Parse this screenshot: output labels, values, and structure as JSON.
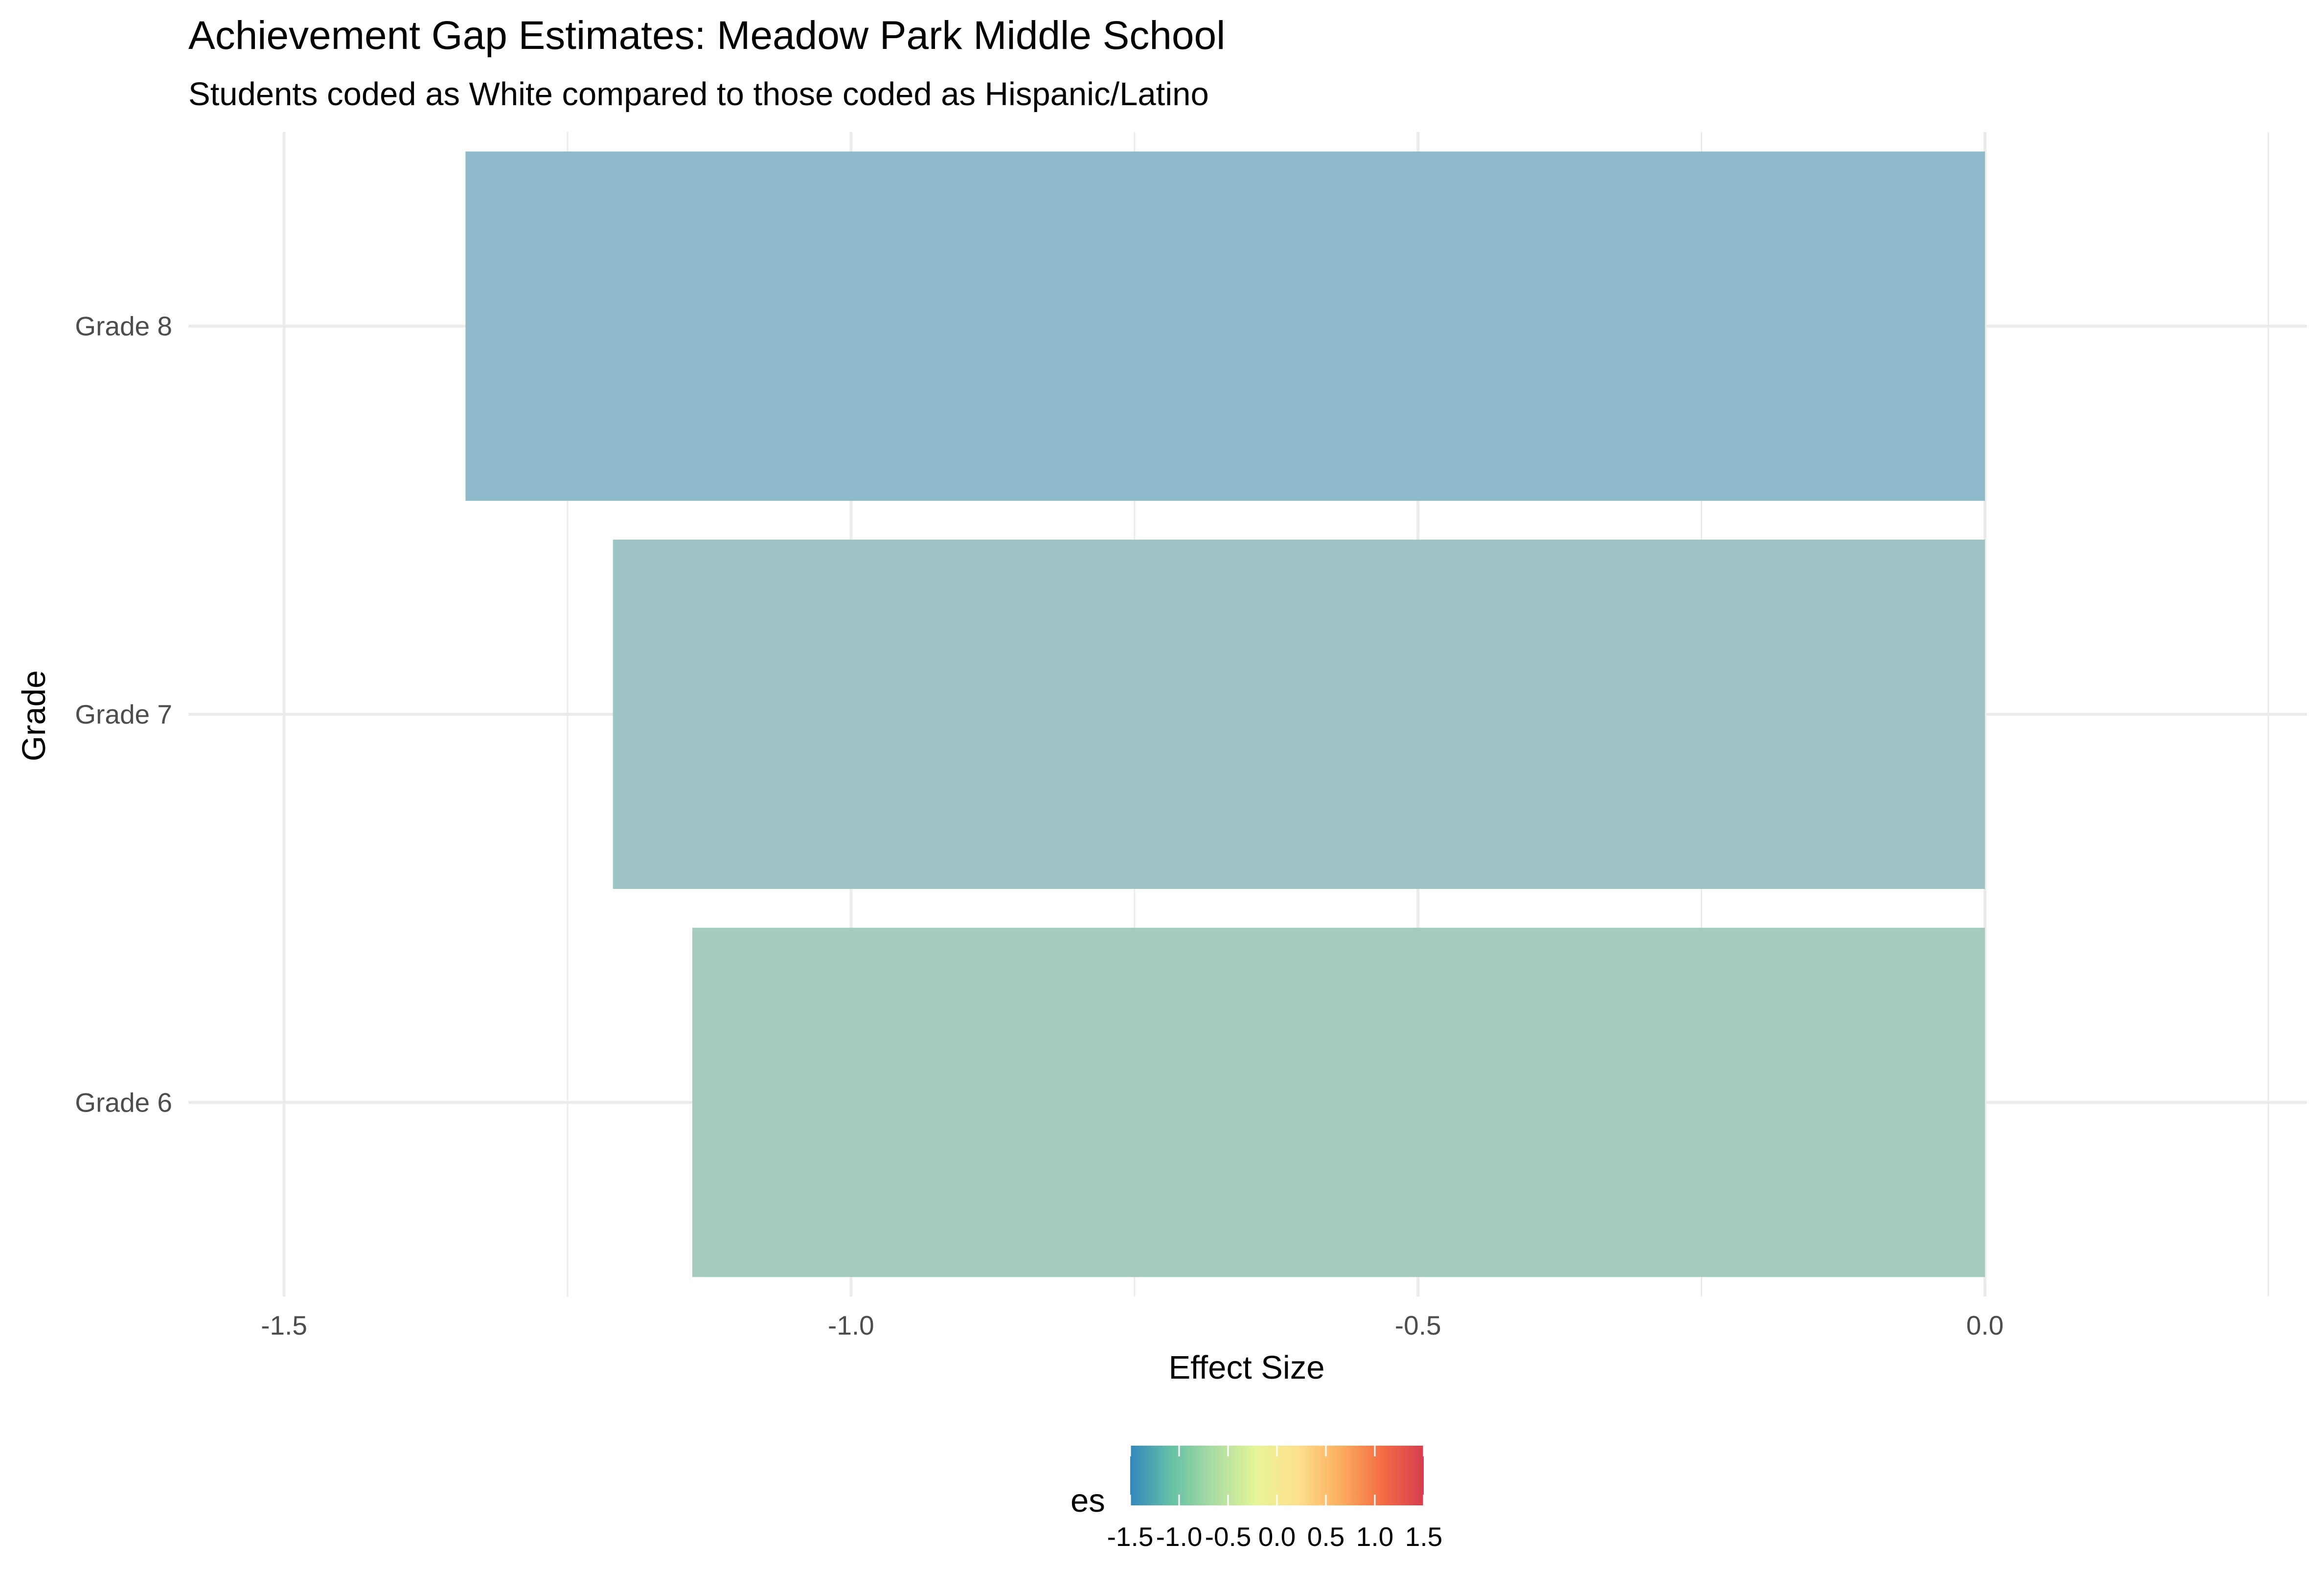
{
  "chart_data": {
    "type": "bar",
    "orientation": "horizontal",
    "title": "Achievement Gap Estimates: Meadow Park Middle School",
    "subtitle": "Students coded as White compared to those coded as Hispanic/Latino",
    "xlabel": "Effect Size",
    "ylabel": "Grade",
    "categories": [
      "Grade 6",
      "Grade 7",
      "Grade 8"
    ],
    "values": [
      -1.14,
      -1.21,
      -1.34
    ],
    "bar_colors": [
      "#a5cbc1",
      "#9fc5c4",
      "#8eb9c8"
    ],
    "xlim": [
      -1.5,
      0.25
    ],
    "x_ticks": [
      {
        "value": -1.5,
        "label": "-1.5"
      },
      {
        "value": -1.0,
        "label": "-1.0"
      },
      {
        "value": -0.5,
        "label": "-0.5"
      },
      {
        "value": 0.0,
        "label": "0.0"
      }
    ],
    "grid": true,
    "legend": {
      "title": "es",
      "position": "bottom",
      "type": "colorbar",
      "range": [
        -1.5,
        1.5
      ],
      "ticks": [
        {
          "value": -1.5,
          "label": "-1.5"
        },
        {
          "value": -1.0,
          "label": "-1.0"
        },
        {
          "value": -0.5,
          "label": "-0.5"
        },
        {
          "value": 0.0,
          "label": "0.0"
        },
        {
          "value": 0.5,
          "label": "0.5"
        },
        {
          "value": 1.0,
          "label": "1.0"
        },
        {
          "value": 1.5,
          "label": "1.5"
        }
      ],
      "gradient_colors": [
        "#3288bd",
        "#66c2a5",
        "#abdda4",
        "#e6f598",
        "#fee08b",
        "#fdae61",
        "#f46d43",
        "#d53e4f"
      ]
    }
  }
}
